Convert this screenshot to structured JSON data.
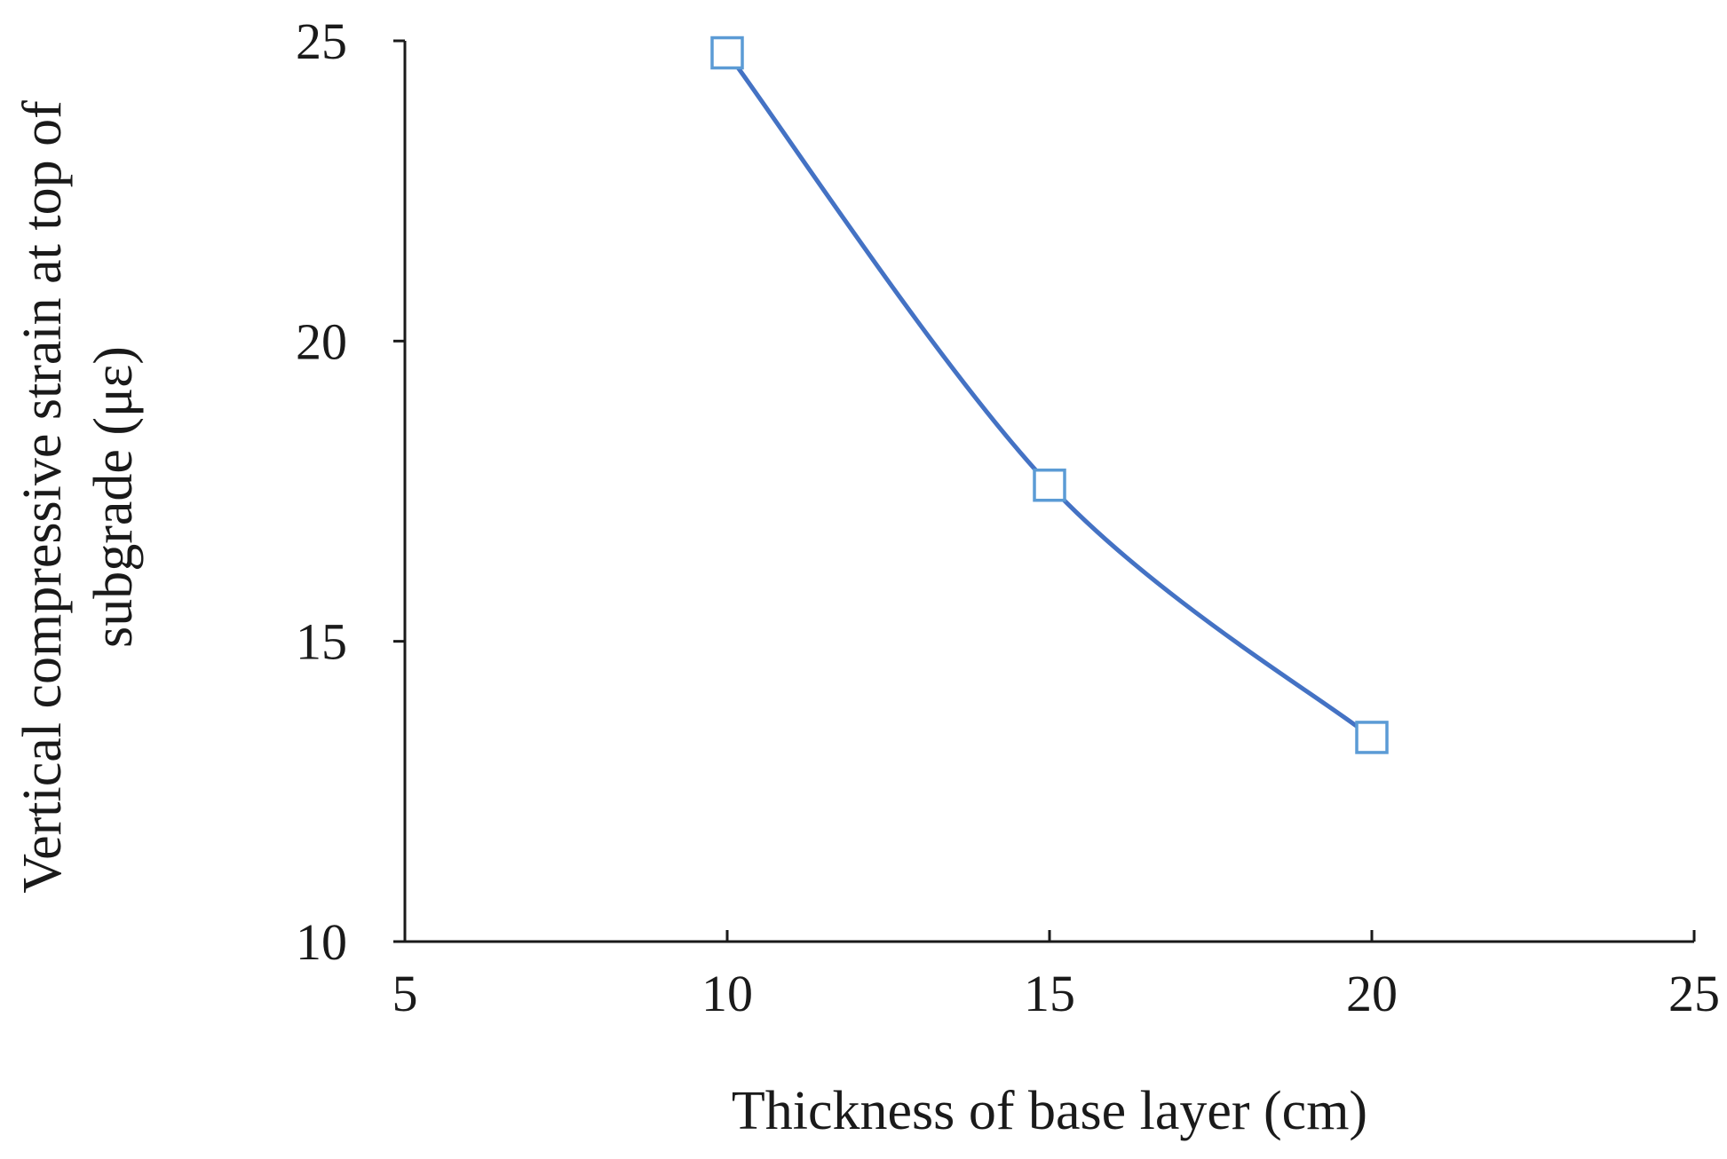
{
  "chart_data": {
    "type": "line",
    "title": "",
    "xlabel": "Thickness of base layer (cm)",
    "ylabel_lines": [
      "Vertical compressive strain at top of",
      "subgrade (με)"
    ],
    "xlim": [
      5,
      25
    ],
    "ylim": [
      10,
      25
    ],
    "xticks": [
      5,
      10,
      15,
      20,
      25
    ],
    "yticks": [
      10,
      15,
      20,
      25
    ],
    "grid": false,
    "legend": "none",
    "series": [
      {
        "name": "Vertical compressive strain",
        "x": [
          10,
          15,
          20
        ],
        "values": [
          24.8,
          17.6,
          13.4
        ],
        "line_color": "#4472c4",
        "marker": "square",
        "marker_color": "#5b9bd5",
        "smooth": true
      }
    ]
  }
}
